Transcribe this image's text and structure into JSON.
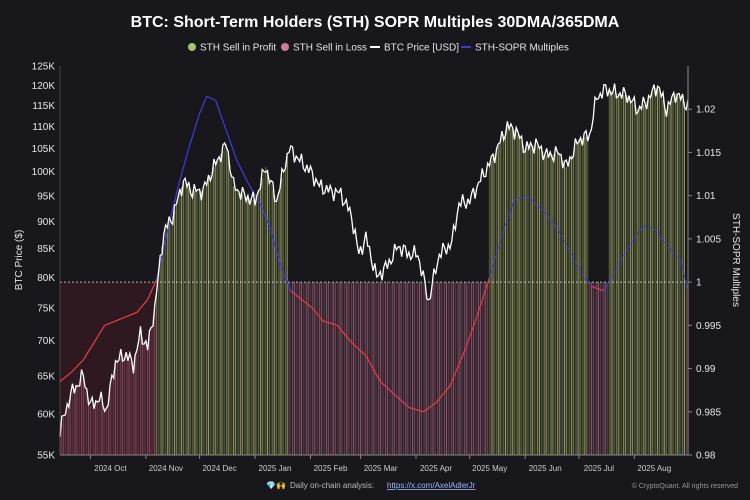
{
  "chart_data": {
    "type": "area",
    "title": "BTC: Short-Term Holders (STH) SOPR Multiples 30DMA/365DMA",
    "legend": [
      {
        "name": "STH Sell in Profit",
        "marker": "dot",
        "color": "#a6c46a"
      },
      {
        "name": "STH Sell in Loss",
        "marker": "dot",
        "color": "#d17a9c"
      },
      {
        "name": "BTC Price [USD]",
        "marker": "line",
        "color": "#ffffff"
      },
      {
        "name": "STH-SOPR Multiples",
        "marker": "line",
        "color": "#3b3bd6"
      }
    ],
    "legend_position": "top",
    "left_axis": {
      "label": "BTC Price ($)",
      "scale": "log",
      "range": [
        55000,
        125000
      ],
      "ticks": [
        55000,
        60000,
        65000,
        70000,
        75000,
        80000,
        85000,
        90000,
        95000,
        100000,
        105000,
        110000,
        115000,
        120000,
        125000
      ],
      "tick_labels": [
        "55K",
        "60K",
        "65K",
        "70K",
        "75K",
        "80K",
        "85K",
        "90K",
        "95K",
        "100K",
        "105K",
        "110K",
        "115K",
        "120K",
        "125K"
      ]
    },
    "right_axis": {
      "label": "STH-SOPR Multiples",
      "scale": "linear",
      "range": [
        0.98,
        1.025
      ],
      "ticks": [
        0.98,
        0.985,
        0.99,
        0.995,
        1.0,
        1.005,
        1.01,
        1.015,
        1.02
      ],
      "tick_labels": [
        "0.98",
        "0.985",
        "0.99",
        "0.995",
        "1",
        "1.005",
        "1.01",
        "1.015",
        "1.02"
      ]
    },
    "x_axis": {
      "range": [
        "2024-09-14",
        "2025-08-31"
      ],
      "ticks": [
        "2024-10-01",
        "2024-11-01",
        "2024-12-01",
        "2025-01-01",
        "2025-02-01",
        "2025-03-01",
        "2025-04-01",
        "2025-05-01",
        "2025-06-01",
        "2025-07-01",
        "2025-08-01"
      ],
      "tick_labels": [
        "2024 Oct",
        "2024 Nov",
        "2024 Dec",
        "2025 Jan",
        "2025 Feb",
        "2025 Mar",
        "2025 Apr",
        "2025 May",
        "2025 Jun",
        "2025 Jul",
        "2025 Aug"
      ]
    },
    "baseline": 1,
    "grid": false,
    "series": [
      {
        "name": "BTC Price [USD]",
        "axis": "left",
        "color": "#ffffff",
        "x": [
          "2024-09-14",
          "2024-09-20",
          "2024-09-27",
          "2024-10-01",
          "2024-10-06",
          "2024-10-10",
          "2024-10-15",
          "2024-10-21",
          "2024-10-25",
          "2024-10-29",
          "2024-11-02",
          "2024-11-06",
          "2024-11-11",
          "2024-11-16",
          "2024-11-22",
          "2024-11-27",
          "2024-12-03",
          "2024-12-09",
          "2024-12-16",
          "2024-12-20",
          "2024-12-26",
          "2025-01-01",
          "2025-01-07",
          "2025-01-13",
          "2025-01-20",
          "2025-01-27",
          "2025-02-01",
          "2025-02-06",
          "2025-02-12",
          "2025-02-18",
          "2025-02-24",
          "2025-02-28",
          "2025-03-04",
          "2025-03-10",
          "2025-03-16",
          "2025-03-22",
          "2025-03-28",
          "2025-04-02",
          "2025-04-08",
          "2025-04-14",
          "2025-04-21",
          "2025-04-25",
          "2025-05-01",
          "2025-05-08",
          "2025-05-14",
          "2025-05-22",
          "2025-05-27",
          "2025-06-01",
          "2025-06-07",
          "2025-06-13",
          "2025-06-20",
          "2025-06-24",
          "2025-07-01",
          "2025-07-07",
          "2025-07-11",
          "2025-07-16",
          "2025-07-22",
          "2025-07-28",
          "2025-08-03",
          "2025-08-08",
          "2025-08-14",
          "2025-08-19",
          "2025-08-24",
          "2025-08-31"
        ],
        "values": [
          58000,
          62500,
          65000,
          61000,
          62000,
          60500,
          67000,
          68000,
          66500,
          71000,
          69000,
          75000,
          88000,
          91000,
          98000,
          96000,
          96000,
          101000,
          106000,
          97000,
          95000,
          94000,
          101000,
          94000,
          105000,
          102000,
          100000,
          97000,
          96000,
          95500,
          91000,
          84000,
          87000,
          80000,
          82000,
          85500,
          84000,
          84000,
          76000,
          84000,
          86000,
          93500,
          94000,
          99000,
          103000,
          110000,
          109000,
          105000,
          106000,
          103500,
          104000,
          101000,
          107000,
          108000,
          117000,
          119000,
          118000,
          117500,
          114000,
          116000,
          120000,
          114000,
          118000,
          115000
        ]
      },
      {
        "name": "STH-SOPR Multiples",
        "axis": "right",
        "color": "#3b3bd6",
        "x": [
          "2024-09-14",
          "2024-09-20",
          "2024-09-27",
          "2024-10-03",
          "2024-10-09",
          "2024-10-15",
          "2024-10-21",
          "2024-10-27",
          "2024-11-02",
          "2024-11-07",
          "2024-11-13",
          "2024-11-19",
          "2024-11-25",
          "2024-12-01",
          "2024-12-05",
          "2024-12-10",
          "2024-12-16",
          "2024-12-22",
          "2024-12-28",
          "2025-01-04",
          "2025-01-10",
          "2025-01-15",
          "2025-01-21",
          "2025-01-27",
          "2025-02-02",
          "2025-02-08",
          "2025-02-16",
          "2025-02-24",
          "2025-03-04",
          "2025-03-12",
          "2025-03-20",
          "2025-03-28",
          "2025-04-05",
          "2025-04-12",
          "2025-04-20",
          "2025-04-28",
          "2025-05-05",
          "2025-05-12",
          "2025-05-19",
          "2025-05-26",
          "2025-06-02",
          "2025-06-10",
          "2025-06-18",
          "2025-06-25",
          "2025-07-01",
          "2025-07-08",
          "2025-07-15",
          "2025-07-22",
          "2025-07-30",
          "2025-08-06",
          "2025-08-13",
          "2025-08-20",
          "2025-08-27",
          "2025-08-31"
        ],
        "values": [
          0.9885,
          0.9895,
          0.991,
          0.993,
          0.995,
          0.9955,
          0.996,
          0.9965,
          0.998,
          1.0003,
          1.006,
          1.011,
          1.0155,
          1.0195,
          1.0215,
          1.021,
          1.0175,
          1.014,
          1.0115,
          1.009,
          1.006,
          1.002,
          0.999,
          0.998,
          0.997,
          0.9955,
          0.995,
          0.993,
          0.9915,
          0.9885,
          0.987,
          0.9855,
          0.985,
          0.986,
          0.988,
          0.992,
          0.996,
          1.0005,
          1.0055,
          1.0095,
          1.01,
          1.0085,
          1.0065,
          1.004,
          1.0015,
          0.9995,
          0.999,
          1.0015,
          1.0045,
          1.0065,
          1.006,
          1.004,
          1.0025,
          0.999
        ]
      }
    ]
  },
  "footer": {
    "attribution": "Daily on-chain analysis:",
    "link": "https://x.com/AxelAdlerJr",
    "emoji": "💎🙌",
    "credit": "© CryptoQuant. All rights reserved"
  }
}
